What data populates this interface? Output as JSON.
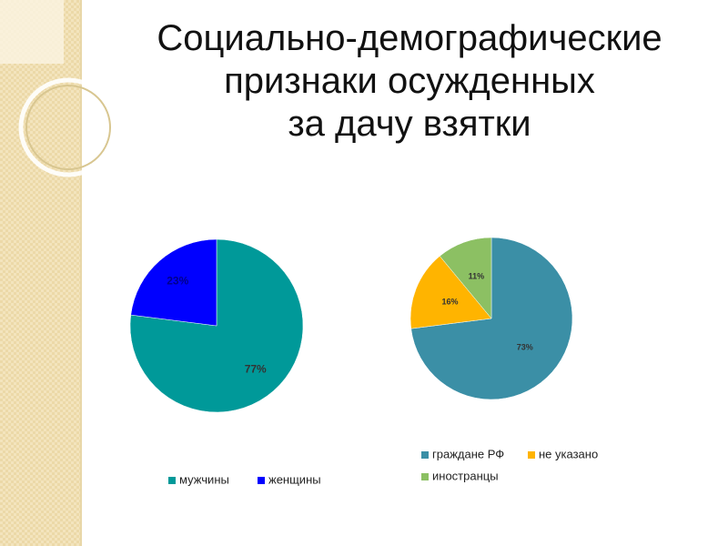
{
  "title": "Социально-демографические признаки осужденных за дачу взятки",
  "chart_data": [
    {
      "type": "pie",
      "categories": [
        "мужчины",
        "женщины"
      ],
      "values": [
        77,
        23
      ],
      "value_labels": [
        "77%",
        "23%"
      ],
      "colors": [
        "#009999",
        "#0000ff"
      ],
      "legend": "bottom"
    },
    {
      "type": "pie",
      "categories": [
        "граждане РФ",
        "не указано",
        "иностранцы"
      ],
      "values": [
        73,
        16,
        11
      ],
      "value_labels": [
        "73%",
        "16%",
        "11%"
      ],
      "colors": [
        "#3b8fa6",
        "#ffb400",
        "#8cc063"
      ],
      "legend": "bottom"
    }
  ]
}
